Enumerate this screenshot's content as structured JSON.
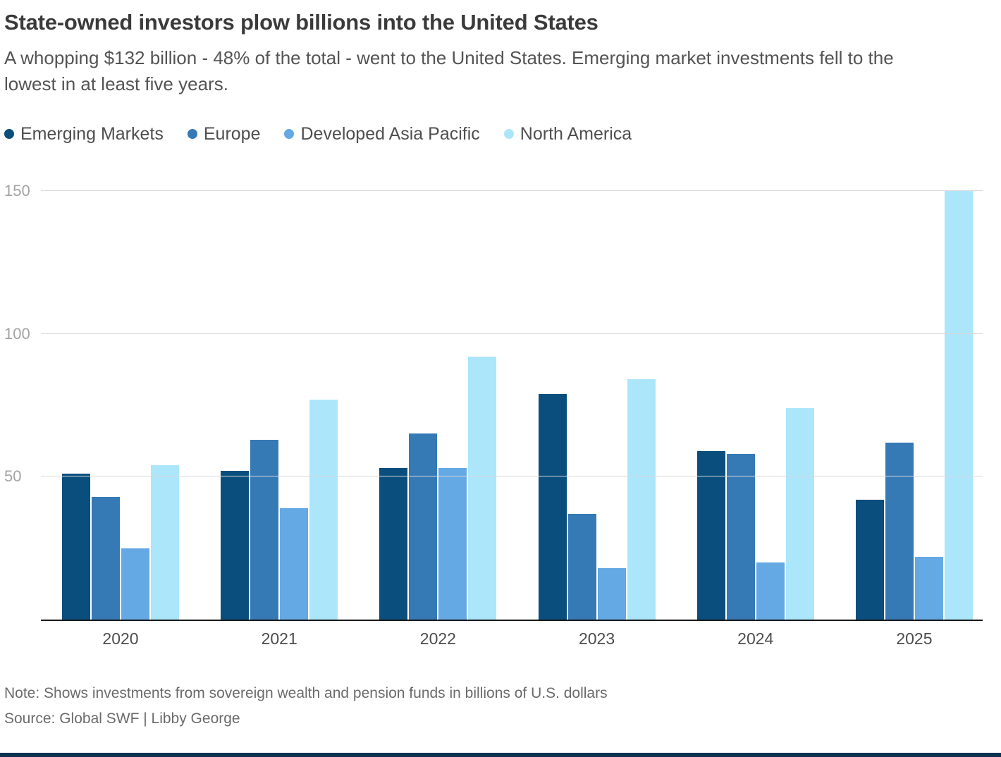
{
  "header": {
    "title": "State-owned investors plow billions into the United States",
    "subtitle": "A whopping $132 billion - 48% of the total - went to the United States. Emerging market investments fell to the lowest in at least five years."
  },
  "chart_data": {
    "type": "bar",
    "title": "State-owned investors plow billions into the United States",
    "categories": [
      "2020",
      "2021",
      "2022",
      "2023",
      "2024",
      "2025"
    ],
    "series": [
      {
        "name": "Emerging Markets",
        "color": "#0a4e7e",
        "values": [
          51,
          52,
          53,
          79,
          59,
          42
        ]
      },
      {
        "name": "Europe",
        "color": "#3579b5",
        "values": [
          43,
          63,
          65,
          37,
          58,
          62
        ]
      },
      {
        "name": "Developed Asia Pacific",
        "color": "#64a9e4",
        "values": [
          25,
          39,
          53,
          18,
          20,
          22
        ]
      },
      {
        "name": "North America",
        "color": "#abe6fb",
        "values": [
          54,
          77,
          92,
          84,
          74,
          150
        ]
      }
    ],
    "xlabel": "",
    "ylabel": "",
    "ylim": [
      0,
      155
    ],
    "yticks": [
      50,
      100,
      150
    ],
    "grid": true,
    "legend_position": "top",
    "units": "billions of U.S. dollars"
  },
  "footer": {
    "note": "Note: Shows investments from sovereign wealth and pension funds in billions of U.S. dollars",
    "source": "Source: Global SWF | Libby George",
    "strip_color": "#0f3152"
  },
  "colors": {
    "axis": "#1a1a1a",
    "gridline": "#d8d8d8"
  }
}
